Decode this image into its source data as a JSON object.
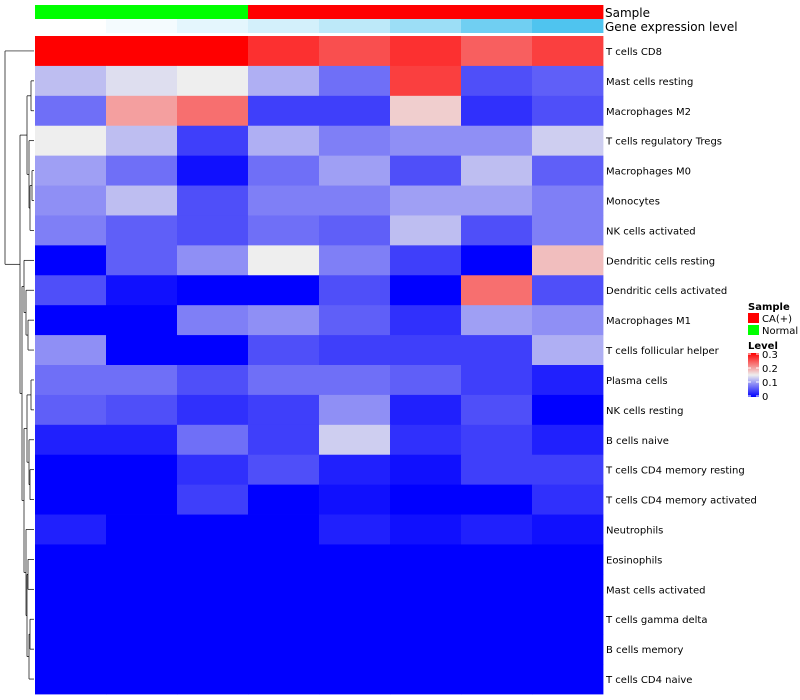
{
  "chart_data": {
    "type": "heatmap",
    "title": "",
    "rows": [
      "T cells CD8",
      "Mast cells resting",
      "Macrophages M2",
      "T cells regulatory  Tregs",
      "Macrophages M0",
      "Monocytes",
      "NK cells activated",
      "Dendritic cells resting",
      "Dendritic cells activated",
      "Macrophages M1",
      "T cells follicular helper",
      "Plasma cells",
      "NK cells resting",
      "B cells naive",
      "T cells CD4 memory resting",
      "T cells CD4 memory activated",
      "Neutrophils",
      "Eosinophils",
      "Mast cells activated",
      "T cells gamma delta",
      "B cells memory",
      "T cells CD4 naive"
    ],
    "column_annotations": [
      {
        "name": "Sample",
        "values": [
          "Normal",
          "Normal",
          "Normal",
          "CA(+)",
          "CA(+)",
          "CA(+)",
          "CA(+)",
          "CA(+)"
        ]
      },
      {
        "name": "Gene expression level",
        "levels": [
          0.0,
          0.02,
          0.05,
          0.08,
          0.12,
          0.18,
          0.26,
          0.32
        ]
      }
    ],
    "values": [
      [
        0.32,
        0.32,
        0.32,
        0.27,
        0.25,
        0.27,
        0.24,
        0.26
      ],
      [
        0.12,
        0.14,
        0.15,
        0.11,
        0.07,
        0.26,
        0.05,
        0.06
      ],
      [
        0.07,
        0.2,
        0.23,
        0.04,
        0.04,
        0.17,
        0.03,
        0.05
      ],
      [
        0.15,
        0.12,
        0.04,
        0.11,
        0.08,
        0.09,
        0.09,
        0.13
      ],
      [
        0.1,
        0.07,
        0.01,
        0.07,
        0.1,
        0.05,
        0.12,
        0.06
      ],
      [
        0.09,
        0.12,
        0.05,
        0.08,
        0.08,
        0.1,
        0.1,
        0.08
      ],
      [
        0.08,
        0.06,
        0.05,
        0.07,
        0.06,
        0.12,
        0.05,
        0.08
      ],
      [
        0.0,
        0.06,
        0.09,
        0.15,
        0.08,
        0.04,
        0.0,
        0.18
      ],
      [
        0.05,
        0.01,
        0.0,
        0.0,
        0.05,
        0.0,
        0.23,
        0.05
      ],
      [
        0.0,
        0.0,
        0.08,
        0.09,
        0.06,
        0.03,
        0.1,
        0.09
      ],
      [
        0.09,
        0.0,
        0.0,
        0.05,
        0.04,
        0.04,
        0.04,
        0.11
      ],
      [
        0.07,
        0.07,
        0.05,
        0.07,
        0.07,
        0.06,
        0.04,
        0.02
      ],
      [
        0.06,
        0.05,
        0.03,
        0.04,
        0.09,
        0.02,
        0.05,
        0.0
      ],
      [
        0.02,
        0.02,
        0.07,
        0.04,
        0.13,
        0.03,
        0.04,
        0.02
      ],
      [
        0.0,
        0.0,
        0.03,
        0.05,
        0.02,
        0.01,
        0.04,
        0.04
      ],
      [
        0.0,
        0.0,
        0.04,
        0.0,
        0.01,
        0.0,
        0.0,
        0.03
      ],
      [
        0.02,
        0.0,
        0.0,
        0.0,
        0.02,
        0.01,
        0.02,
        0.01
      ],
      [
        0.0,
        0.0,
        0.0,
        0.0,
        0.0,
        0.0,
        0.0,
        0.0
      ],
      [
        0.0,
        0.0,
        0.0,
        0.0,
        0.0,
        0.0,
        0.0,
        0.0
      ],
      [
        0.0,
        0.0,
        0.0,
        0.0,
        0.0,
        0.0,
        0.0,
        0.0
      ],
      [
        0.0,
        0.0,
        0.0,
        0.0,
        0.0,
        0.0,
        0.0,
        0.0
      ],
      [
        0.0,
        0.0,
        0.0,
        0.0,
        0.0,
        0.0,
        0.0,
        0.0
      ]
    ],
    "color_scale": {
      "domain": [
        0,
        0.15,
        0.3
      ],
      "colors": [
        "#0000ff",
        "#eeeeee",
        "#ff0000"
      ]
    },
    "legend": {
      "placement": "right",
      "sample_title": "Sample",
      "sample_entries": [
        {
          "label": "CA(+)",
          "color": "#ff0000"
        },
        {
          "label": "Normal",
          "color": "#00ff00"
        }
      ],
      "level_title": "Level",
      "level_ticks": [
        "0.3",
        "0.2",
        "0.1",
        "0"
      ]
    },
    "dendrogram": "rows"
  }
}
